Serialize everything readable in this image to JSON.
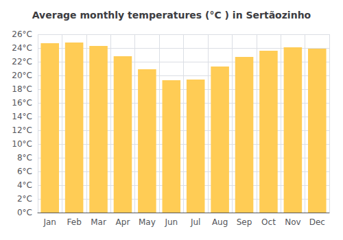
{
  "chart_data": {
    "type": "bar",
    "title": "Average monthly temperatures (°C ) in Sertãozinho",
    "categories": [
      "Jan",
      "Feb",
      "Mar",
      "Apr",
      "May",
      "Jun",
      "Jul",
      "Aug",
      "Sep",
      "Oct",
      "Nov",
      "Dec"
    ],
    "values": [
      24.7,
      24.8,
      24.3,
      22.8,
      20.9,
      19.3,
      19.4,
      21.3,
      22.7,
      23.6,
      24.1,
      23.9
    ],
    "color": "#FFCC55",
    "ylim": [
      0,
      26
    ],
    "yticks": [
      {
        "value": 0,
        "label": "0°C"
      },
      {
        "value": 2,
        "label": "2°C"
      },
      {
        "value": 4,
        "label": "4°C"
      },
      {
        "value": 6,
        "label": "6°C"
      },
      {
        "value": 8,
        "label": "8°C"
      },
      {
        "value": 10,
        "label": "10°C"
      },
      {
        "value": 12,
        "label": "12°C"
      },
      {
        "value": 14,
        "label": "14°C"
      },
      {
        "value": 16,
        "label": "16°C"
      },
      {
        "value": 18,
        "label": "18°C"
      },
      {
        "value": 20,
        "label": "20°C"
      },
      {
        "value": 22,
        "label": "22°C"
      },
      {
        "value": 24,
        "label": "24°C"
      },
      {
        "value": 26,
        "label": "26°C"
      }
    ],
    "grid": true
  }
}
